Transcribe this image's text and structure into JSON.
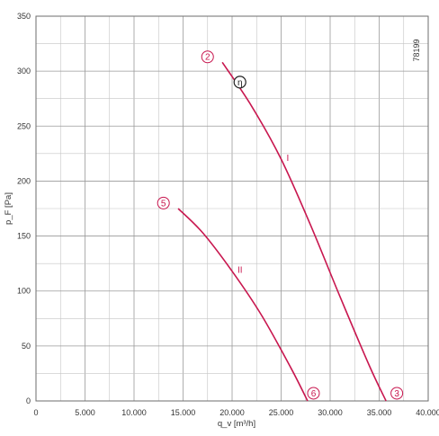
{
  "chart_data": {
    "type": "line",
    "title": "",
    "xlabel": "q_v [m³/h]",
    "ylabel": "p_F [Pa]",
    "xlim": [
      0,
      40000
    ],
    "ylim": [
      0,
      350
    ],
    "x_ticks": [
      0,
      5000,
      10000,
      15000,
      20000,
      25000,
      30000,
      35000,
      40000
    ],
    "x_tick_labels": [
      "0",
      "5.000",
      "10.000",
      "15.000",
      "20.000",
      "25.000",
      "30.000",
      "35.000",
      "40.000"
    ],
    "y_ticks": [
      0,
      50,
      100,
      150,
      200,
      250,
      300,
      350
    ],
    "y_tick_labels": [
      "0",
      "50",
      "100",
      "150",
      "200",
      "250",
      "300",
      "350"
    ],
    "grid": true,
    "series": [
      {
        "name": "I",
        "color": "#c8174f",
        "x": [
          19000,
          22000,
          25000,
          28000,
          31000,
          34000,
          35700
        ],
        "y": [
          308,
          268,
          220,
          160,
          95,
          32,
          0
        ]
      },
      {
        "name": "II",
        "color": "#c8174f",
        "x": [
          14500,
          17000,
          20000,
          23000,
          26000,
          27700
        ],
        "y": [
          175,
          153,
          118,
          78,
          30,
          0
        ]
      }
    ],
    "markers": [
      {
        "label": "2",
        "x": 17500,
        "y": 313
      },
      {
        "label": "3",
        "x": 36800,
        "y": 7
      },
      {
        "label": "5",
        "x": 13000,
        "y": 180
      },
      {
        "label": "6",
        "x": 28300,
        "y": 7
      }
    ],
    "efficiency_marker": {
      "label": "η",
      "x": 20800,
      "y": 290
    },
    "reference": "78199"
  }
}
